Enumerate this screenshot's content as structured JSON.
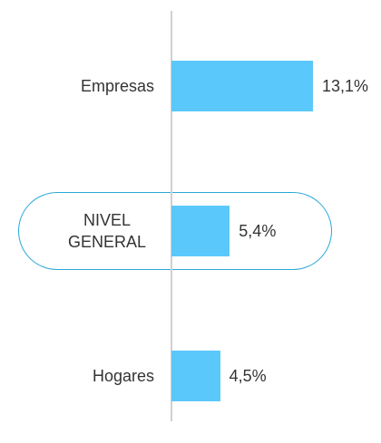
{
  "chart_data": {
    "type": "bar",
    "orientation": "horizontal",
    "categories": [
      "Empresas",
      "NIVEL GENERAL",
      "Hogares"
    ],
    "values": [
      13.1,
      5.4,
      4.5
    ],
    "value_labels": [
      "13,1%",
      "5,4%",
      "4,5%"
    ],
    "color": "#5bc8fb"
  }
}
